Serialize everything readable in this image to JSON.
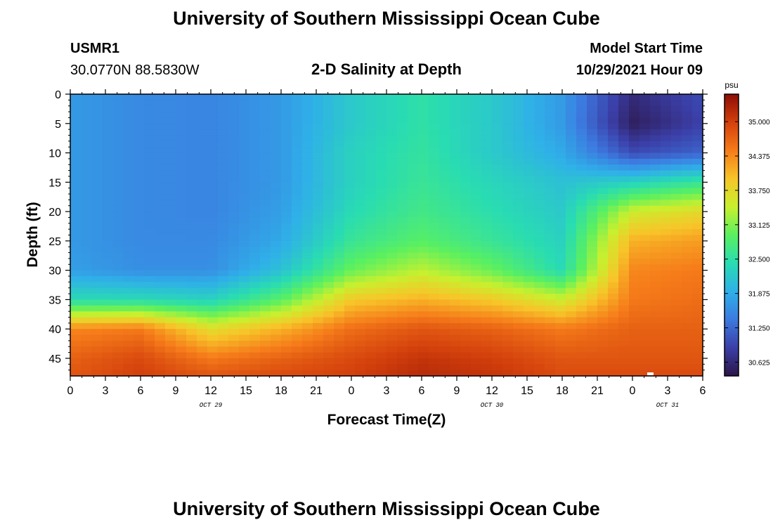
{
  "page": {
    "title": "University of Southern Mississippi Ocean Cube",
    "title_repeat": "University of Southern Mississippi Ocean Cube"
  },
  "station": {
    "id": "USMR1",
    "coords": "30.0770N  88.5830W"
  },
  "plot_title": "2-D Salinity at Depth",
  "model": {
    "label": "Model Start Time",
    "time": "10/29/2021 Hour 09"
  },
  "chart_data": {
    "type": "heatmap",
    "title": "2-D Salinity at Depth",
    "xlabel": "Forecast Time(Z)",
    "ylabel": "Depth (ft)",
    "x_ticks": [
      "0",
      "3",
      "6",
      "9",
      "12",
      "15",
      "18",
      "21",
      "0",
      "3",
      "6",
      "9",
      "12",
      "15",
      "18",
      "21",
      "0",
      "3",
      "6"
    ],
    "x_hours": [
      0,
      3,
      6,
      9,
      12,
      15,
      18,
      21,
      24,
      27,
      30,
      33,
      36,
      39,
      42,
      45,
      48,
      51,
      54
    ],
    "xlim": [
      0,
      54
    ],
    "day_labels": [
      {
        "hour": 12,
        "label": "OCT 29"
      },
      {
        "hour": 36,
        "label": "OCT 30"
      },
      {
        "hour": 51,
        "label": "OCT 31"
      }
    ],
    "y_ticks": [
      "0",
      "5",
      "10",
      "15",
      "20",
      "25",
      "30",
      "35",
      "40",
      "45"
    ],
    "y_values": [
      0,
      5,
      10,
      15,
      20,
      25,
      30,
      35,
      40,
      45
    ],
    "ylim": [
      0,
      48
    ],
    "y_inverted": true,
    "colorbar": {
      "unit": "psu",
      "ticks": [
        "35.000",
        "34.375",
        "33.750",
        "33.125",
        "32.500",
        "31.875",
        "31.250",
        "30.625"
      ],
      "tick_values": [
        35.0,
        34.375,
        33.75,
        33.125,
        32.5,
        31.875,
        31.25,
        30.625
      ],
      "range": [
        30.375,
        35.5
      ],
      "colors": [
        "#2b1546",
        "#3b3fa8",
        "#3c7ae0",
        "#2fb0e8",
        "#29dcb2",
        "#5af060",
        "#c8f02e",
        "#f7c529",
        "#f67c1a",
        "#d3400c",
        "#8e0d05"
      ]
    },
    "time_points_hours": [
      0,
      6,
      12,
      18,
      24,
      30,
      36,
      42,
      48,
      54
    ],
    "depth_points_ft": [
      0,
      5,
      10,
      15,
      20,
      25,
      30,
      35,
      40,
      45,
      48
    ],
    "salinity_grid_psu": [
      [
        31.7,
        31.55,
        31.5,
        31.7,
        32.2,
        32.5,
        32.2,
        31.7,
        30.65,
        31.0
      ],
      [
        31.7,
        31.55,
        31.5,
        31.7,
        32.2,
        32.5,
        32.2,
        31.7,
        30.5,
        30.9
      ],
      [
        31.7,
        31.55,
        31.5,
        31.7,
        32.3,
        32.55,
        32.2,
        31.85,
        31.0,
        31.2
      ],
      [
        31.7,
        31.55,
        31.5,
        31.7,
        32.3,
        32.6,
        32.35,
        32.1,
        32.3,
        32.6
      ],
      [
        31.7,
        31.55,
        31.5,
        31.75,
        32.4,
        32.7,
        32.45,
        32.2,
        33.5,
        33.75
      ],
      [
        31.7,
        31.55,
        31.55,
        31.85,
        32.6,
        32.9,
        32.6,
        32.3,
        34.1,
        34.25
      ],
      [
        31.75,
        31.6,
        31.6,
        32.1,
        33.0,
        33.4,
        33.0,
        32.4,
        34.4,
        34.5
      ],
      [
        32.4,
        32.4,
        32.3,
        32.9,
        33.9,
        34.1,
        33.9,
        33.5,
        34.5,
        34.6
      ],
      [
        34.4,
        34.5,
        33.7,
        34.1,
        34.6,
        34.8,
        34.7,
        34.5,
        34.7,
        34.7
      ],
      [
        34.7,
        34.9,
        34.5,
        34.7,
        34.9,
        35.1,
        35.0,
        34.8,
        34.8,
        34.8
      ],
      [
        34.8,
        35.0,
        34.8,
        34.9,
        35.0,
        35.2,
        35.1,
        34.9,
        34.9,
        34.9
      ]
    ]
  }
}
